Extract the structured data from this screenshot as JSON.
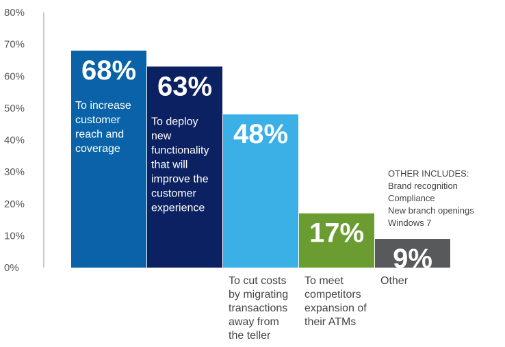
{
  "chart_data": {
    "type": "bar",
    "ylim": [
      0,
      80
    ],
    "yticks": [
      "0%",
      "10%",
      "20%",
      "30%",
      "40%",
      "50%",
      "60%",
      "70%",
      "80%"
    ],
    "grid": false,
    "bars": [
      {
        "value": 68,
        "value_label": "68%",
        "label_lines": [
          "To increase",
          "customer",
          "reach and",
          "coverage"
        ],
        "label_position": "inside",
        "color": "#0a63a8"
      },
      {
        "value": 63,
        "value_label": "63%",
        "label_lines": [
          "To deploy",
          "new",
          "functionality",
          "that will",
          "improve the",
          "customer",
          "experience"
        ],
        "label_position": "inside",
        "color": "#0c2161"
      },
      {
        "value": 48,
        "value_label": "48%",
        "label_lines": [
          "To cut costs",
          "by migrating",
          "transactions",
          "away from",
          "the teller"
        ],
        "label_position": "below",
        "color": "#3bb0e6"
      },
      {
        "value": 17,
        "value_label": "17%",
        "label_lines": [
          "To meet",
          "competitors",
          "expansion of",
          "their ATMs"
        ],
        "label_position": "below",
        "color": "#6b9c32"
      },
      {
        "value": 9,
        "value_label": "9%",
        "label_lines": [
          "Other"
        ],
        "label_position": "below",
        "color": "#58595b"
      }
    ]
  },
  "note": {
    "title": "OTHER INCLUDES:",
    "items": [
      "Brand recognition",
      "Compliance",
      "New branch openings",
      "Windows 7"
    ]
  }
}
